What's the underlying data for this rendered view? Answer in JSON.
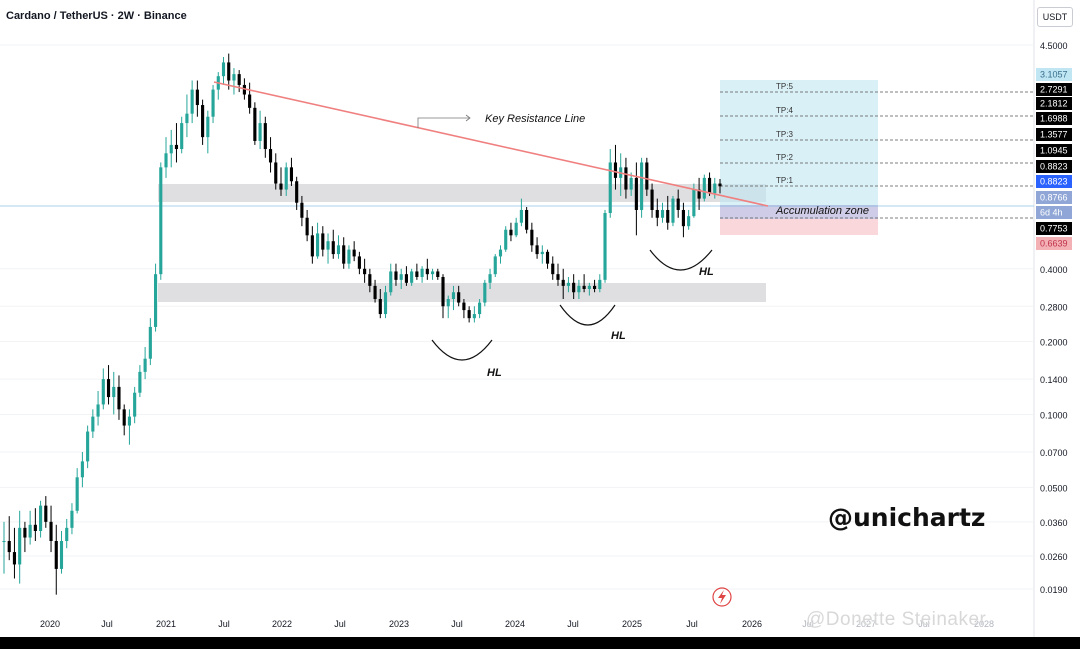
{
  "chart_data": {
    "type": "candlestick",
    "title": "Cardano / TetherUS · 2W · Binance",
    "unit": "USDT",
    "watermark": "@unichartz",
    "social_watermark": "@Donette Steinaker",
    "x_ticks": [
      "2020",
      "Jul",
      "2021",
      "Jul",
      "2022",
      "Jul",
      "2023",
      "Jul",
      "2024",
      "Jul",
      "2025",
      "Jul",
      "2026"
    ],
    "faded_ticks": [
      "Jul",
      "2027",
      "Jul",
      "2028"
    ],
    "y_ticks": [
      "4.5000",
      "0.4000",
      "0.2800",
      "0.2000",
      "0.1400",
      "0.1000",
      "0.0700",
      "0.0500",
      "0.0360",
      "0.0260",
      "0.0190"
    ],
    "tp_labels": [
      {
        "label": "TP:5",
        "value": "2.7291"
      },
      {
        "label": "TP:4",
        "value": "2.1812"
      },
      {
        "label": "TP:3",
        "value": "1.6988"
      },
      {
        "label": "TP:2",
        "value": "1.3577"
      },
      {
        "label": "TP:1",
        "value": "1.0945"
      }
    ],
    "price_tags": [
      {
        "value": "3.1057",
        "color": "#bfe6f2",
        "text_color": "#3a6f8f"
      },
      {
        "value": "0.8823",
        "color": "#000000",
        "text_color": "#ffffff"
      },
      {
        "value": "0.8823",
        "color": "#2962ff",
        "text_color": "#ffffff"
      },
      {
        "value": "0.8766",
        "color": "#8fa6d6",
        "text_color": "#ffffff"
      },
      {
        "value": "6d 4h",
        "color": "#8fa6d6",
        "text_color": "#ffffff"
      },
      {
        "value": "0.7753",
        "color": "#000000",
        "text_color": "#ffffff"
      },
      {
        "value": "0.6639",
        "color": "#f3b0b5",
        "text_color": "#c0334a"
      }
    ],
    "annotations": {
      "resistance": "Key Resistance Line",
      "accumulation": "Accumulation zone",
      "higher_lows": [
        "HL",
        "HL",
        "HL"
      ]
    },
    "candles": [
      [
        0.03,
        0.036,
        0.022,
        0.03
      ],
      [
        0.03,
        0.038,
        0.025,
        0.027
      ],
      [
        0.027,
        0.034,
        0.021,
        0.024
      ],
      [
        0.024,
        0.04,
        0.02,
        0.034
      ],
      [
        0.034,
        0.036,
        0.027,
        0.031
      ],
      [
        0.031,
        0.04,
        0.029,
        0.035
      ],
      [
        0.035,
        0.041,
        0.03,
        0.033
      ],
      [
        0.033,
        0.044,
        0.031,
        0.042
      ],
      [
        0.042,
        0.046,
        0.034,
        0.036
      ],
      [
        0.036,
        0.042,
        0.027,
        0.03
      ],
      [
        0.03,
        0.035,
        0.018,
        0.023
      ],
      [
        0.023,
        0.033,
        0.022,
        0.03
      ],
      [
        0.03,
        0.037,
        0.028,
        0.034
      ],
      [
        0.034,
        0.043,
        0.032,
        0.04
      ],
      [
        0.04,
        0.06,
        0.039,
        0.055
      ],
      [
        0.055,
        0.07,
        0.05,
        0.064
      ],
      [
        0.064,
        0.09,
        0.06,
        0.085
      ],
      [
        0.085,
        0.105,
        0.08,
        0.098
      ],
      [
        0.098,
        0.125,
        0.09,
        0.11
      ],
      [
        0.11,
        0.155,
        0.105,
        0.14
      ],
      [
        0.14,
        0.16,
        0.11,
        0.118
      ],
      [
        0.118,
        0.15,
        0.1,
        0.13
      ],
      [
        0.13,
        0.145,
        0.095,
        0.105
      ],
      [
        0.105,
        0.11,
        0.082,
        0.09
      ],
      [
        0.09,
        0.105,
        0.075,
        0.098
      ],
      [
        0.098,
        0.13,
        0.092,
        0.123
      ],
      [
        0.123,
        0.16,
        0.118,
        0.15
      ],
      [
        0.15,
        0.19,
        0.14,
        0.17
      ],
      [
        0.17,
        0.25,
        0.16,
        0.23
      ],
      [
        0.23,
        0.42,
        0.22,
        0.38
      ],
      [
        0.38,
        1.1,
        0.36,
        1.05
      ],
      [
        1.05,
        1.4,
        0.95,
        1.2
      ],
      [
        1.2,
        1.5,
        1.05,
        1.3
      ],
      [
        1.3,
        1.6,
        1.1,
        1.25
      ],
      [
        1.25,
        1.7,
        1.2,
        1.6
      ],
      [
        1.6,
        2.1,
        1.4,
        1.75
      ],
      [
        1.75,
        2.4,
        1.6,
        2.2
      ],
      [
        2.2,
        2.4,
        1.7,
        1.9
      ],
      [
        1.9,
        2.0,
        1.3,
        1.4
      ],
      [
        1.4,
        1.8,
        1.2,
        1.7
      ],
      [
        1.7,
        2.3,
        1.6,
        2.2
      ],
      [
        2.2,
        2.6,
        2.0,
        2.5
      ],
      [
        2.5,
        3.0,
        2.3,
        2.85
      ],
      [
        2.85,
        3.1,
        2.2,
        2.4
      ],
      [
        2.4,
        2.7,
        2.1,
        2.55
      ],
      [
        2.55,
        2.65,
        2.15,
        2.3
      ],
      [
        2.3,
        2.45,
        2.0,
        2.1
      ],
      [
        2.1,
        2.35,
        1.75,
        1.85
      ],
      [
        1.85,
        1.95,
        1.3,
        1.35
      ],
      [
        1.35,
        1.8,
        1.25,
        1.6
      ],
      [
        1.6,
        1.7,
        1.15,
        1.25
      ],
      [
        1.25,
        1.4,
        1.0,
        1.1
      ],
      [
        1.1,
        1.2,
        0.85,
        0.9
      ],
      [
        0.9,
        1.05,
        0.8,
        0.85
      ],
      [
        0.85,
        1.1,
        0.8,
        1.05
      ],
      [
        1.05,
        1.15,
        0.88,
        0.92
      ],
      [
        0.92,
        0.96,
        0.7,
        0.75
      ],
      [
        0.75,
        0.8,
        0.6,
        0.65
      ],
      [
        0.65,
        0.7,
        0.52,
        0.55
      ],
      [
        0.55,
        0.6,
        0.42,
        0.45
      ],
      [
        0.45,
        0.62,
        0.44,
        0.56
      ],
      [
        0.56,
        0.6,
        0.45,
        0.48
      ],
      [
        0.48,
        0.56,
        0.42,
        0.52
      ],
      [
        0.52,
        0.58,
        0.44,
        0.46
      ],
      [
        0.46,
        0.55,
        0.44,
        0.5
      ],
      [
        0.5,
        0.54,
        0.4,
        0.42
      ],
      [
        0.42,
        0.5,
        0.4,
        0.48
      ],
      [
        0.48,
        0.52,
        0.43,
        0.45
      ],
      [
        0.45,
        0.47,
        0.38,
        0.4
      ],
      [
        0.4,
        0.44,
        0.35,
        0.38
      ],
      [
        0.38,
        0.4,
        0.32,
        0.34
      ],
      [
        0.34,
        0.36,
        0.29,
        0.3
      ],
      [
        0.3,
        0.33,
        0.25,
        0.26
      ],
      [
        0.26,
        0.34,
        0.25,
        0.32
      ],
      [
        0.32,
        0.42,
        0.31,
        0.39
      ],
      [
        0.39,
        0.42,
        0.34,
        0.36
      ],
      [
        0.36,
        0.4,
        0.33,
        0.38
      ],
      [
        0.38,
        0.41,
        0.34,
        0.35
      ],
      [
        0.35,
        0.4,
        0.34,
        0.39
      ],
      [
        0.39,
        0.42,
        0.36,
        0.37
      ],
      [
        0.37,
        0.41,
        0.35,
        0.4
      ],
      [
        0.4,
        0.44,
        0.36,
        0.38
      ],
      [
        0.38,
        0.4,
        0.36,
        0.39
      ],
      [
        0.39,
        0.4,
        0.36,
        0.37
      ],
      [
        0.37,
        0.38,
        0.25,
        0.28
      ],
      [
        0.28,
        0.31,
        0.25,
        0.3
      ],
      [
        0.3,
        0.34,
        0.27,
        0.32
      ],
      [
        0.32,
        0.34,
        0.28,
        0.29
      ],
      [
        0.29,
        0.3,
        0.25,
        0.27
      ],
      [
        0.27,
        0.28,
        0.24,
        0.25
      ],
      [
        0.25,
        0.28,
        0.24,
        0.26
      ],
      [
        0.26,
        0.3,
        0.25,
        0.29
      ],
      [
        0.29,
        0.36,
        0.28,
        0.35
      ],
      [
        0.35,
        0.4,
        0.33,
        0.38
      ],
      [
        0.38,
        0.46,
        0.37,
        0.45
      ],
      [
        0.45,
        0.5,
        0.42,
        0.48
      ],
      [
        0.48,
        0.6,
        0.47,
        0.58
      ],
      [
        0.58,
        0.62,
        0.52,
        0.55
      ],
      [
        0.55,
        0.65,
        0.54,
        0.62
      ],
      [
        0.62,
        0.78,
        0.6,
        0.7
      ],
      [
        0.7,
        0.72,
        0.56,
        0.58
      ],
      [
        0.58,
        0.62,
        0.47,
        0.5
      ],
      [
        0.5,
        0.54,
        0.44,
        0.46
      ],
      [
        0.46,
        0.5,
        0.42,
        0.47
      ],
      [
        0.47,
        0.48,
        0.4,
        0.42
      ],
      [
        0.42,
        0.45,
        0.36,
        0.38
      ],
      [
        0.38,
        0.42,
        0.34,
        0.36
      ],
      [
        0.36,
        0.4,
        0.3,
        0.34
      ],
      [
        0.34,
        0.37,
        0.32,
        0.35
      ],
      [
        0.35,
        0.38,
        0.3,
        0.32
      ],
      [
        0.32,
        0.36,
        0.3,
        0.34
      ],
      [
        0.34,
        0.38,
        0.32,
        0.33
      ],
      [
        0.33,
        0.35,
        0.31,
        0.34
      ],
      [
        0.34,
        0.36,
        0.32,
        0.33
      ],
      [
        0.33,
        0.38,
        0.32,
        0.36
      ],
      [
        0.36,
        0.7,
        0.35,
        0.68
      ],
      [
        0.68,
        1.25,
        0.65,
        1.1
      ],
      [
        1.1,
        1.3,
        0.85,
        0.95
      ],
      [
        0.95,
        1.2,
        0.8,
        1.05
      ],
      [
        1.05,
        1.15,
        0.78,
        0.85
      ],
      [
        0.85,
        1.0,
        0.8,
        0.95
      ],
      [
        0.95,
        1.1,
        0.55,
        0.7
      ],
      [
        0.7,
        1.15,
        0.65,
        1.1
      ],
      [
        1.1,
        1.15,
        0.8,
        0.85
      ],
      [
        0.85,
        0.9,
        0.65,
        0.7
      ],
      [
        0.7,
        0.78,
        0.6,
        0.65
      ],
      [
        0.65,
        0.75,
        0.62,
        0.7
      ],
      [
        0.7,
        0.8,
        0.58,
        0.62
      ],
      [
        0.62,
        0.8,
        0.6,
        0.78
      ],
      [
        0.78,
        0.85,
        0.65,
        0.7
      ],
      [
        0.7,
        0.75,
        0.54,
        0.6
      ],
      [
        0.6,
        0.7,
        0.58,
        0.66
      ],
      [
        0.66,
        0.9,
        0.65,
        0.85
      ],
      [
        0.85,
        0.95,
        0.7,
        0.78
      ],
      [
        0.78,
        0.98,
        0.76,
        0.95
      ],
      [
        0.95,
        1.0,
        0.8,
        0.82
      ],
      [
        0.82,
        0.95,
        0.78,
        0.9
      ],
      [
        0.9,
        0.94,
        0.82,
        0.877
      ]
    ]
  }
}
